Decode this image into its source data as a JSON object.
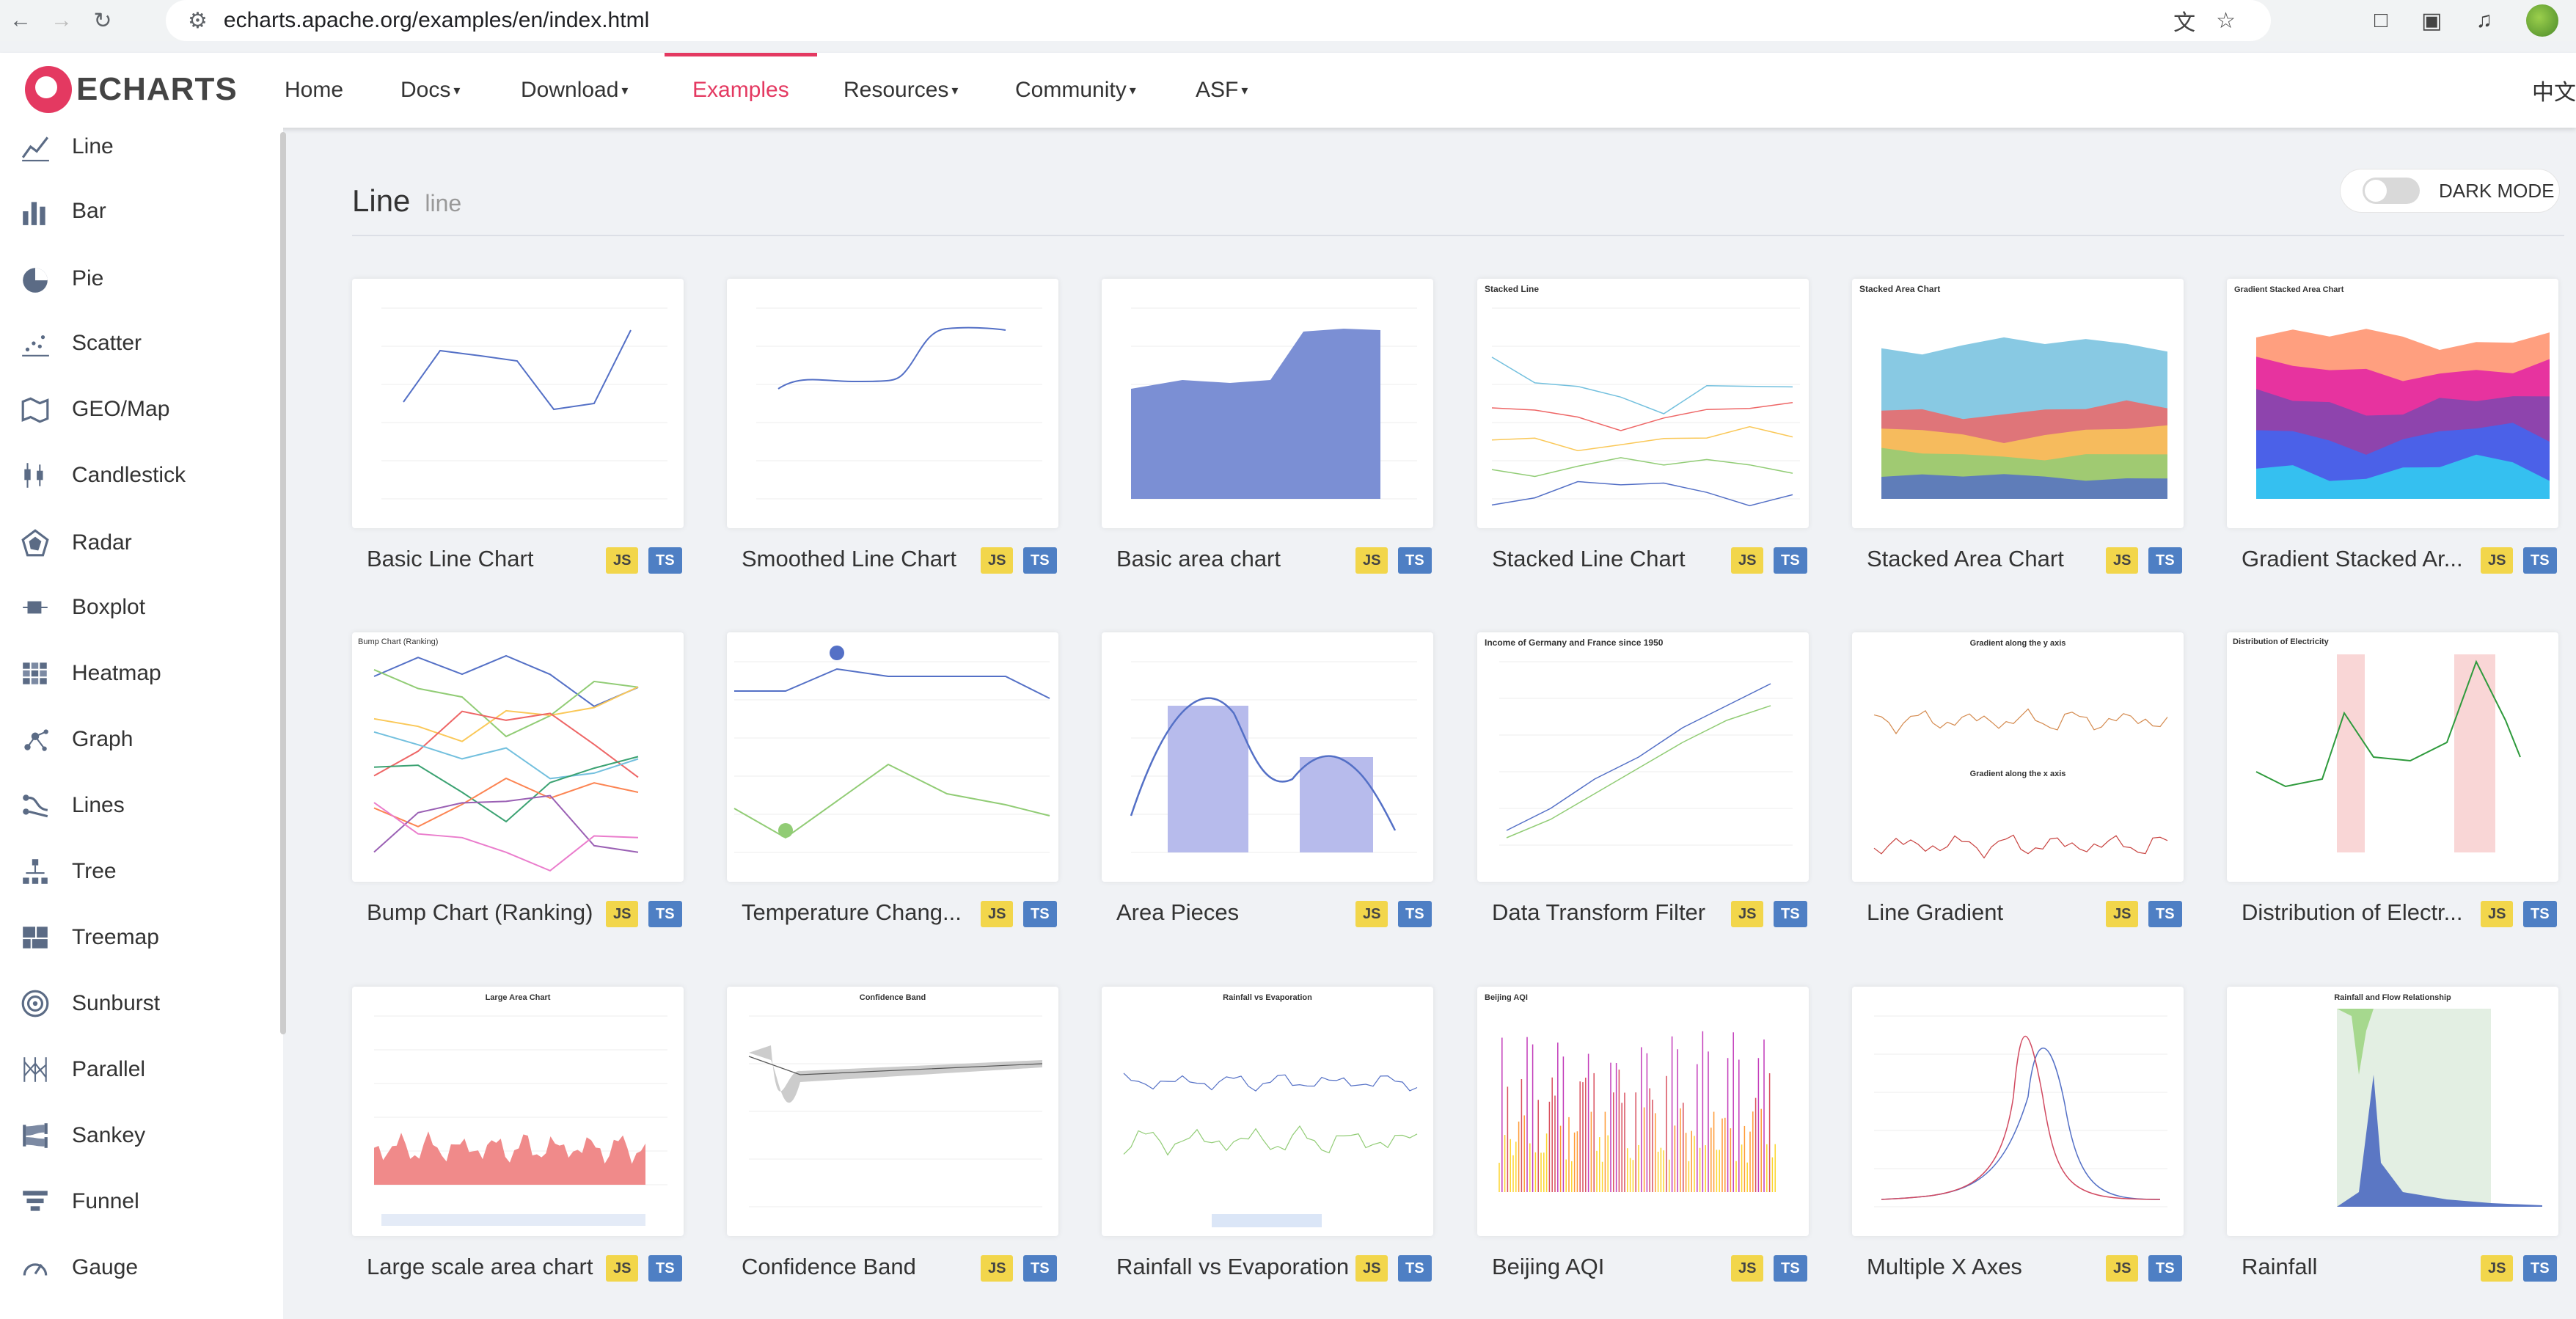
{
  "browser": {
    "url": "echarts.apache.org/examples/en/index.html",
    "back_icon": "arrow-left-icon",
    "forward_icon": "arrow-right-icon",
    "reload_icon": "reload-icon"
  },
  "navbar": {
    "logo_text": "ECHARTS",
    "items": [
      {
        "label": "Home",
        "dropdown": false
      },
      {
        "label": "Docs",
        "dropdown": true
      },
      {
        "label": "Download",
        "dropdown": true
      },
      {
        "label": "Examples",
        "dropdown": false
      },
      {
        "label": "Resources",
        "dropdown": true
      },
      {
        "label": "Community",
        "dropdown": true
      },
      {
        "label": "ASF",
        "dropdown": true
      }
    ],
    "active": "Examples",
    "lang": "中文",
    "accent": "#e43961"
  },
  "sidebar": {
    "items": [
      {
        "label": "Line",
        "icon": "line-chart-icon"
      },
      {
        "label": "Bar",
        "icon": "bar-chart-icon"
      },
      {
        "label": "Pie",
        "icon": "pie-chart-icon"
      },
      {
        "label": "Scatter",
        "icon": "scatter-chart-icon"
      },
      {
        "label": "GEO/Map",
        "icon": "map-icon"
      },
      {
        "label": "Candlestick",
        "icon": "candlestick-icon"
      },
      {
        "label": "Radar",
        "icon": "radar-icon"
      },
      {
        "label": "Boxplot",
        "icon": "boxplot-icon"
      },
      {
        "label": "Heatmap",
        "icon": "heatmap-icon"
      },
      {
        "label": "Graph",
        "icon": "graph-icon"
      },
      {
        "label": "Lines",
        "icon": "lines-icon"
      },
      {
        "label": "Tree",
        "icon": "tree-icon"
      },
      {
        "label": "Treemap",
        "icon": "treemap-icon"
      },
      {
        "label": "Sunburst",
        "icon": "sunburst-icon"
      },
      {
        "label": "Parallel",
        "icon": "parallel-icon"
      },
      {
        "label": "Sankey",
        "icon": "sankey-icon"
      },
      {
        "label": "Funnel",
        "icon": "funnel-icon"
      },
      {
        "label": "Gauge",
        "icon": "gauge-icon"
      }
    ]
  },
  "main": {
    "title": "Line",
    "subtitle": "line",
    "dark_mode_label": "DARK MODE",
    "js_label": "JS",
    "ts_label": "TS",
    "cards": [
      {
        "title": "Basic Line Chart"
      },
      {
        "title": "Smoothed Line Chart"
      },
      {
        "title": "Basic area chart"
      },
      {
        "title": "Stacked Line Chart",
        "thumb_title": "Stacked Line"
      },
      {
        "title": "Stacked Area Chart",
        "thumb_title": "Stacked Area Chart"
      },
      {
        "title": "Gradient Stacked Ar...",
        "thumb_title": "Gradient Stacked Area Chart"
      },
      {
        "title": "Bump Chart (Ranking)",
        "thumb_title": "Bump Chart (Ranking)"
      },
      {
        "title": "Temperature Chang..."
      },
      {
        "title": "Area Pieces"
      },
      {
        "title": "Data Transform Filter",
        "thumb_title": "Income of Germany and France since 1950"
      },
      {
        "title": "Line Gradient",
        "thumb_title": "Gradient along the y axis",
        "thumb_title2": "Gradient along the x axis"
      },
      {
        "title": "Distribution of Electr...",
        "thumb_title": "Distribution of Electricity"
      },
      {
        "title": "Large scale area chart",
        "thumb_title": "Large Area Chart"
      },
      {
        "title": "Confidence Band",
        "thumb_title": "Confidence Band"
      },
      {
        "title": "Rainfall vs Evaporation",
        "thumb_title": "Rainfall vs Evaporation"
      },
      {
        "title": "Beijing AQI",
        "thumb_title": "Beijing AQI"
      },
      {
        "title": "Multiple X Axes"
      },
      {
        "title": "Rainfall",
        "thumb_title": "Rainfall and Flow Relationship"
      }
    ]
  }
}
